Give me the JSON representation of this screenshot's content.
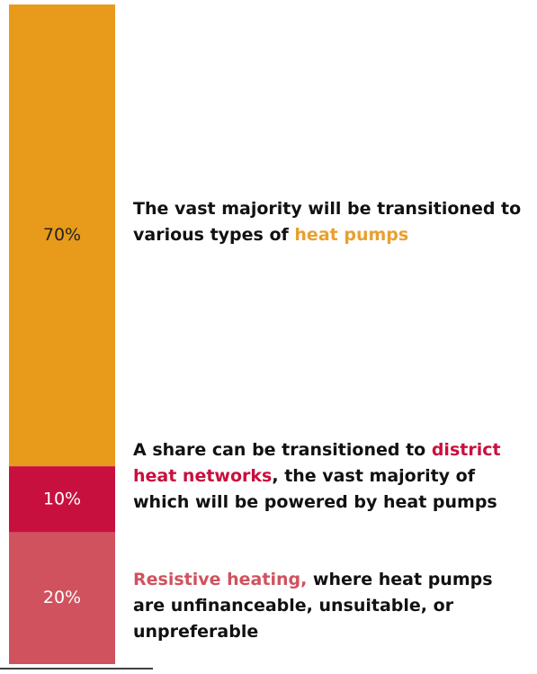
{
  "chart_data": {
    "type": "bar",
    "stacked": true,
    "ylim": [
      0,
      100
    ],
    "series": [
      {
        "color": "#d0525f",
        "values": [
          20
        ],
        "value_labels": [
          "20%"
        ],
        "label_color": "#ffffff"
      },
      {
        "color": "#c8103f",
        "values": [
          10
        ],
        "value_labels": [
          "10%"
        ],
        "label_color": "#ffffff"
      },
      {
        "color": "#e89a1a",
        "values": [
          70
        ],
        "value_labels": [
          "70%"
        ],
        "label_color": "#222222"
      }
    ],
    "annotations": [
      {
        "parts": [
          {
            "text": "The vast majority will be transitioned to various types of ",
            "color": "#111111"
          },
          {
            "text": "heat pumps",
            "color": "#e8a030"
          }
        ]
      },
      {
        "parts": [
          {
            "text": "A share can be transitioned to ",
            "color": "#111111"
          },
          {
            "text": "district heat networks",
            "color": "#c8103f"
          },
          {
            "text": ", the vast majority of which will be powered by heat pumps",
            "color": "#111111"
          }
        ]
      },
      {
        "parts": [
          {
            "text": "Resistive heating,",
            "color": "#d0525f"
          },
          {
            "text": " where heat pumps are unfinanceable, unsuitable, or unpreferable",
            "color": "#111111"
          }
        ]
      }
    ]
  }
}
